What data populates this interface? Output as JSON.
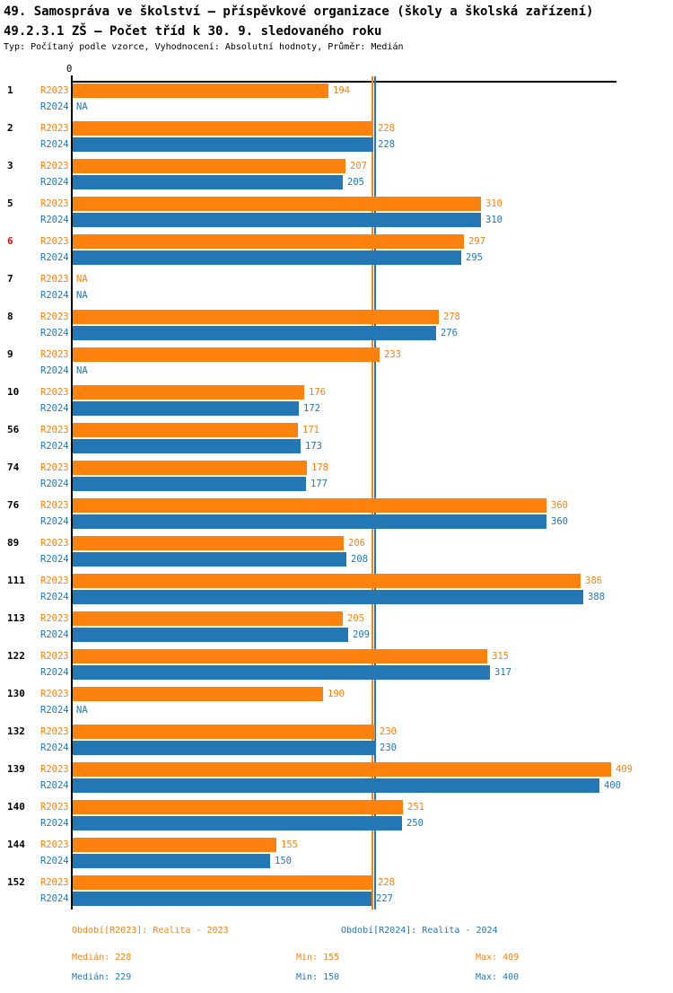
{
  "header": {
    "title_line1": "49. Samospráva ve školství – příspěvkové organizace (školy a školská zařízení)",
    "title_line2": "49.2.3.1 ZŠ – Počet tříd k 30. 9. sledovaného roku",
    "subtitle": "Typ: Počítaný podle vzorce, Vyhodnocení: Absolutní hodnoty, Průměr: Medián"
  },
  "axis": {
    "zero_label": "0"
  },
  "chart_data": {
    "type": "bar",
    "orientation": "horizontal",
    "title": "49.2.3.1 ZŠ – Počet tříd k 30. 9. sledovaného roku",
    "xlabel": "",
    "ylabel": "",
    "xlim": [
      0,
      413
    ],
    "grid": false,
    "na_label": "NA",
    "categories": [
      "1",
      "2",
      "3",
      "5",
      "6",
      "7",
      "8",
      "9",
      "10",
      "56",
      "74",
      "76",
      "89",
      "111",
      "113",
      "122",
      "130",
      "132",
      "139",
      "140",
      "144",
      "152"
    ],
    "highlighted_category": "6",
    "series": [
      {
        "name": "R2023",
        "color": "#fc810d",
        "median": 228,
        "min": 155,
        "max": 409
      },
      {
        "name": "R2024",
        "color": "#2277b4",
        "median": 229,
        "min": 150,
        "max": 400
      }
    ],
    "median_lines": {
      "r2023": 228,
      "r2024": 229
    },
    "rows": [
      {
        "category": "1",
        "r2023": 194,
        "r2024": null
      },
      {
        "category": "2",
        "r2023": 228,
        "r2024": 228
      },
      {
        "category": "3",
        "r2023": 207,
        "r2024": 205
      },
      {
        "category": "5",
        "r2023": 310,
        "r2024": 310
      },
      {
        "category": "6",
        "r2023": 297,
        "r2024": 295,
        "highlight": true
      },
      {
        "category": "7",
        "r2023": null,
        "r2024": null
      },
      {
        "category": "8",
        "r2023": 278,
        "r2024": 276
      },
      {
        "category": "9",
        "r2023": 233,
        "r2024": null
      },
      {
        "category": "10",
        "r2023": 176,
        "r2024": 172
      },
      {
        "category": "56",
        "r2023": 171,
        "r2024": 173
      },
      {
        "category": "74",
        "r2023": 178,
        "r2024": 177
      },
      {
        "category": "76",
        "r2023": 360,
        "r2024": 360
      },
      {
        "category": "89",
        "r2023": 206,
        "r2024": 208
      },
      {
        "category": "111",
        "r2023": 386,
        "r2024": 388
      },
      {
        "category": "113",
        "r2023": 205,
        "r2024": 209
      },
      {
        "category": "122",
        "r2023": 315,
        "r2024": 317
      },
      {
        "category": "130",
        "r2023": 190,
        "r2024": null
      },
      {
        "category": "132",
        "r2023": 230,
        "r2024": 230
      },
      {
        "category": "139",
        "r2023": 409,
        "r2024": 400
      },
      {
        "category": "140",
        "r2023": 251,
        "r2024": 250
      },
      {
        "category": "144",
        "r2023": 155,
        "r2024": 150
      },
      {
        "category": "152",
        "r2023": 228,
        "r2024": 227
      }
    ]
  },
  "legend": {
    "r2023": "Období[R2023]: Realita - 2023",
    "r2024": "Období[R2024]: Realita - 2024"
  },
  "stats": {
    "r2023": {
      "median": "Medián: 228",
      "min": "Min: 155",
      "max": "Max: 409"
    },
    "r2024": {
      "median": "Medián: 229",
      "min": "Min: 150",
      "max": "Max: 400"
    }
  },
  "colors": {
    "r2023": "#fc810d",
    "r2024": "#2277b4",
    "highlight": "#ff0000",
    "axis": "#000000"
  }
}
